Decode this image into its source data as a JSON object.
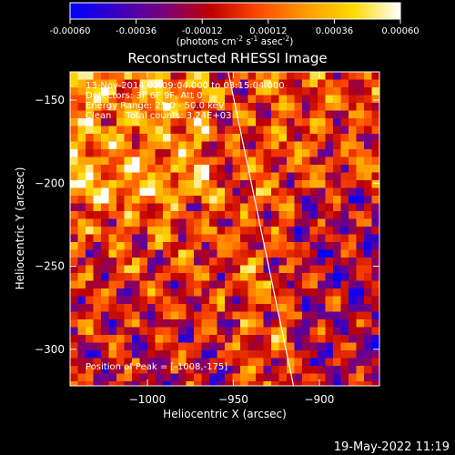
{
  "chart_data": {
    "type": "heatmap",
    "title": "Reconstructed RHESSI Image",
    "xlabel": "Heliocentric X (arcsec)",
    "ylabel": "Heliocentric Y (arcsec)",
    "xlim": [
      -1045,
      -865
    ],
    "ylim": [
      -322,
      -133
    ],
    "x_ticks": [
      -1000,
      -950,
      -900
    ],
    "x_tick_labels": [
      "−1000",
      "−950",
      "−900"
    ],
    "y_ticks": [
      -150,
      -200,
      -250,
      -300
    ],
    "y_tick_labels": [
      "−150",
      "−200",
      "−250",
      "−300"
    ],
    "colorbar": {
      "range": [
        -0.0006,
        0.0006
      ],
      "ticks": [
        -0.0006,
        -0.00036,
        -0.00012,
        0.00012,
        0.00036,
        0.0006
      ],
      "tick_labels": [
        "-0.00060",
        "-0.00036",
        "-0.00012",
        "0.00012",
        "0.00036",
        "0.00060"
      ],
      "unit_parts": [
        "(photons cm",
        "-2",
        " s",
        "-1",
        " asec",
        "-2",
        ")"
      ],
      "colors": [
        "#0000ff",
        "#3a00c0",
        "#7a007a",
        "#c00000",
        "#ff4a00",
        "#ff9a00",
        "#ffd800",
        "#ffffff"
      ]
    },
    "annotations": [
      "13-Nov-2014 03:09:04.000 to 03:15:04.000",
      "Detectors: 3F 6F 9F, Att 0",
      "Energy Range: 25.0 - 50.0 keV",
      "Clean     Total counts: 3.24E+03"
    ],
    "peak_label": "Position of Peak = [-1008,-175]",
    "limb_line": {
      "from": [
        -953,
        -133
      ],
      "to": [
        -915,
        -322
      ]
    }
  },
  "footer": {
    "timestamp": "19-May-2022 11:19"
  }
}
